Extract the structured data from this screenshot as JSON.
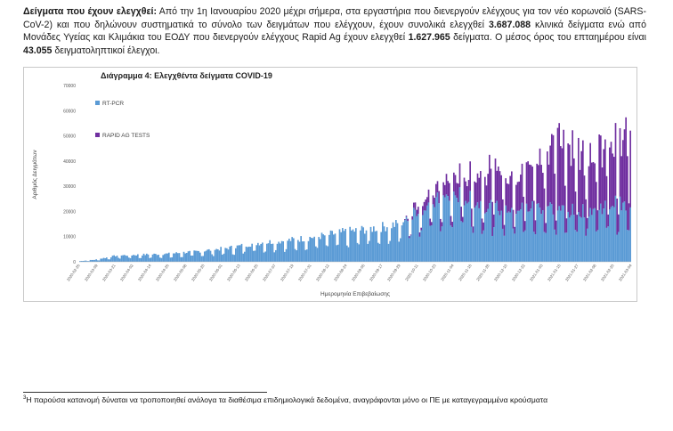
{
  "intro": {
    "heading": "Δείγματα που έχουν ελεγχθεί:",
    "text1": " Από την 1η Ιανουαρίου 2020 μέχρι σήμερα, στα εργαστήρια που διενεργούν ελέγχους για τον νέο κορωνοϊό (SARS-CoV-2) και που δηλώνουν συστηματικά το σύνολο των δειγμάτων που ελέγχουν, έχουν συνολικά ελεγχθεί ",
    "pcr_total": "3.687.088",
    "text2": " κλινικά δείγματα ενώ από Μονάδες Υγείας και Κλιμάκια του ΕΟΔΥ που διενεργούν ελέγχους Rapid Ag έχουν ελεγχθεί ",
    "rapid_total": "1.627.965",
    "text3": " δείγματα. Ο μέσος όρος του επταημέρου είναι ",
    "weekly_avg": "43.055",
    "text4": " δειγματοληπτικοί έλεγχοι."
  },
  "chart_data": {
    "type": "bar",
    "stacked": true,
    "title": "Διάγραμμα 4: Ελεγχθέντα δείγματα COVID-19",
    "xlabel": "Ημερομηνία Επιβεβαίωσης",
    "ylabel": "Αριθμός Δειγμάτων",
    "ylim": [
      0,
      70000
    ],
    "yticks": [
      0,
      10000,
      20000,
      30000,
      40000,
      50000,
      60000,
      70000
    ],
    "grid": false,
    "legend_position": "top-left",
    "x_tick_labels": [
      "2020-02-26",
      "2020-03-09",
      "2020-03-21",
      "2020-04-02",
      "2020-04-14",
      "2020-04-26",
      "2020-05-08",
      "2020-05-20",
      "2020-06-01",
      "2020-06-13",
      "2020-06-25",
      "2020-07-07",
      "2020-07-19",
      "2020-07-31",
      "2020-08-12",
      "2020-08-24",
      "2020-09-05",
      "2020-09-17",
      "2020-09-29",
      "2020-10-11",
      "2020-10-23",
      "2020-11-04",
      "2020-11-16",
      "2020-11-28",
      "2020-12-10",
      "2020-12-22",
      "2021-01-03",
      "2021-01-15",
      "2021-01-27",
      "2021-02-08",
      "2021-02-20",
      "2021-03-04",
      "2021-03-16",
      "2021-03-28",
      "2021-04-09",
      "2021-04-21"
    ],
    "series": [
      {
        "name": "RT-PCR",
        "color": "#5b9bd5",
        "anchors": [
          [
            0,
            300
          ],
          [
            10,
            800
          ],
          [
            25,
            2500
          ],
          [
            60,
            3200
          ],
          [
            80,
            4200
          ],
          [
            100,
            5500
          ],
          [
            120,
            7500
          ],
          [
            140,
            8500
          ],
          [
            160,
            10000
          ],
          [
            180,
            12000
          ],
          [
            200,
            13500
          ],
          [
            215,
            15000
          ],
          [
            225,
            20000
          ],
          [
            240,
            24000
          ],
          [
            255,
            26500
          ],
          [
            270,
            23000
          ],
          [
            285,
            21000
          ],
          [
            300,
            21500
          ],
          [
            315,
            22000
          ],
          [
            330,
            20000
          ],
          [
            345,
            21000
          ],
          [
            360,
            23500
          ],
          [
            371,
            21000
          ]
        ]
      },
      {
        "name": "RAPID AG TESTS",
        "color": "#7030a0",
        "anchors": [
          [
            0,
            0
          ],
          [
            218,
            0
          ],
          [
            228,
            3000
          ],
          [
            240,
            5000
          ],
          [
            255,
            8000
          ],
          [
            268,
            11000
          ],
          [
            280,
            17000
          ],
          [
            292,
            14000
          ],
          [
            305,
            18000
          ],
          [
            318,
            24000
          ],
          [
            328,
            30000
          ],
          [
            338,
            23000
          ],
          [
            348,
            25000
          ],
          [
            358,
            22000
          ],
          [
            366,
            24000
          ],
          [
            371,
            42000
          ]
        ]
      }
    ]
  },
  "footnote": {
    "marker": "3",
    "text": "Η παρούσα κατανομή δύναται να τροποποιηθεί ανάλογα τα διαθέσιμα επιδημιολογικά δεδομένα, αναγράφονται μόνο οι ΠΕ με καταγεγραμμένα κρούσματα"
  }
}
